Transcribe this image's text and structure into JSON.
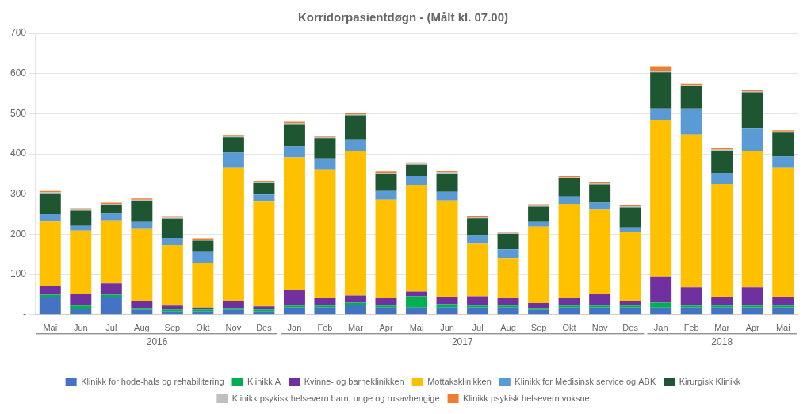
{
  "chart_data": {
    "type": "bar",
    "title": "Korridorpasientdøgn - (Målt kl. 07.00)",
    "categories": [
      "Mai",
      "Jun",
      "Jul",
      "Aug",
      "Sep",
      "Okt",
      "Nov",
      "Des",
      "Jan",
      "Feb",
      "Mar",
      "Apr",
      "Mai",
      "Jun",
      "Jul",
      "Aug",
      "Sep",
      "Okt",
      "Nov",
      "Des",
      "Jan",
      "Feb",
      "Mar",
      "Apr",
      "Mai"
    ],
    "series": [
      {
        "name": "Klinikk for hode-hals og rehabilitering",
        "color": "#4472C4",
        "values": [
          45,
          15,
          45,
          12,
          8,
          8,
          12,
          8,
          18,
          18,
          25,
          18,
          18,
          18,
          18,
          18,
          12,
          18,
          18,
          18,
          18,
          18,
          18,
          18,
          18
        ]
      },
      {
        "name": "Klinikk A",
        "color": "#00B050",
        "values": [
          5,
          8,
          5,
          5,
          5,
          5,
          5,
          5,
          5,
          5,
          5,
          5,
          28,
          8,
          5,
          5,
          5,
          5,
          5,
          5,
          12,
          5,
          5,
          5,
          5
        ]
      },
      {
        "name": "Kvinne- og barneklinikken",
        "color": "#7030A0",
        "values": [
          22,
          28,
          28,
          18,
          10,
          5,
          18,
          8,
          38,
          18,
          18,
          18,
          12,
          18,
          23,
          18,
          12,
          18,
          28,
          12,
          65,
          45,
          22,
          45,
          22
        ]
      },
      {
        "name": "Mottaksklinikken",
        "color": "#FFC000",
        "values": [
          160,
          158,
          155,
          178,
          150,
          110,
          330,
          260,
          330,
          320,
          360,
          245,
          265,
          240,
          130,
          100,
          190,
          235,
          210,
          170,
          390,
          380,
          280,
          340,
          320
        ]
      },
      {
        "name": "Klinikk for Medisinsk service og ABK",
        "color": "#5B9BD5",
        "values": [
          18,
          12,
          18,
          18,
          18,
          28,
          38,
          18,
          28,
          28,
          28,
          22,
          22,
          22,
          22,
          22,
          12,
          18,
          18,
          12,
          28,
          65,
          28,
          55,
          28
        ]
      },
      {
        "name": "Kirurgisk Klinikk",
        "color": "#1E5631",
        "values": [
          52,
          38,
          22,
          52,
          48,
          28,
          38,
          28,
          55,
          50,
          60,
          42,
          28,
          45,
          42,
          38,
          38,
          45,
          45,
          50,
          90,
          55,
          55,
          90,
          60
        ]
      },
      {
        "name": "Klinikk psykisk helsevern barn, unge og rusavhengige",
        "color": "#BFBFBF",
        "values": [
          3,
          3,
          3,
          3,
          3,
          3,
          3,
          3,
          3,
          3,
          3,
          3,
          3,
          3,
          3,
          3,
          3,
          3,
          3,
          3,
          3,
          3,
          3,
          3,
          3
        ]
      },
      {
        "name": "Klinikk psykisk helsevern voksne",
        "color": "#ED7D31",
        "values": [
          3,
          3,
          3,
          3,
          3,
          3,
          3,
          3,
          3,
          3,
          3,
          3,
          3,
          3,
          3,
          3,
          3,
          3,
          3,
          3,
          12,
          3,
          3,
          3,
          3
        ]
      }
    ],
    "stacked": true,
    "ylim": [
      0,
      700
    ],
    "yticks": [
      {
        "value": 0,
        "label": "-"
      },
      100,
      200,
      300,
      400,
      500,
      600,
      700
    ],
    "grid": true,
    "legend": "bottom",
    "annotations": [
      {
        "text": "2016",
        "start": 0,
        "end": 7
      },
      {
        "text": "2017",
        "start": 8,
        "end": 19
      },
      {
        "text": "2018",
        "start": 20,
        "end": 24
      }
    ]
  }
}
